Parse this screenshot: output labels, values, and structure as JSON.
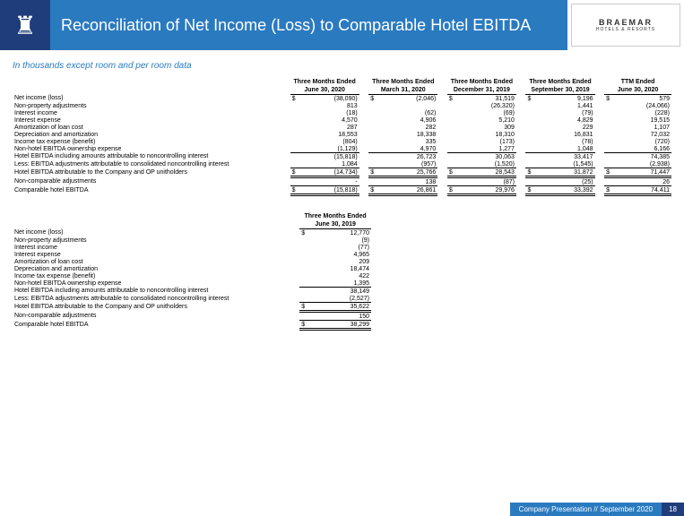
{
  "header": {
    "title": "Reconciliation of Net Income (Loss) to Comparable Hotel EBITDA",
    "brand": "BRAEMAR",
    "brand_sub": "HOTELS & RESORTS"
  },
  "subtitle": "In thousands except room and per room data",
  "periods": [
    {
      "l1": "Three Months Ended",
      "l2": "June 30, 2020"
    },
    {
      "l1": "Three Months Ended",
      "l2": "March 31, 2020"
    },
    {
      "l1": "Three Months Ended",
      "l2": "December 31, 2019"
    },
    {
      "l1": "Three Months Ended",
      "l2": "September 30, 2019"
    },
    {
      "l1": "TTM Ended",
      "l2": "June 30, 2020"
    }
  ],
  "rows": [
    {
      "label": "Net income (loss)",
      "cur": "$",
      "v": [
        "(38,090)",
        "(2,046)",
        "31,519",
        "9,196",
        "579"
      ]
    },
    {
      "label": "Non-property adjustments",
      "v": [
        "813",
        "",
        "(26,320)",
        "1,441",
        "(24,066)"
      ]
    },
    {
      "label": "Interest income",
      "v": [
        "(18)",
        "(62)",
        "(69)",
        "(79)",
        "(228)"
      ]
    },
    {
      "label": "Interest expense",
      "v": [
        "4,570",
        "4,906",
        "5,210",
        "4,829",
        "19,515"
      ]
    },
    {
      "label": "Amortization of loan cost",
      "v": [
        "287",
        "282",
        "309",
        "229",
        "1,107"
      ]
    },
    {
      "label": "Depreciation and amortization",
      "v": [
        "18,553",
        "18,338",
        "18,310",
        "16,831",
        "72,032"
      ]
    },
    {
      "label": "Income tax expense (benefit)",
      "v": [
        "(804)",
        "335",
        "(173)",
        "(78)",
        "(720)"
      ]
    },
    {
      "label": "Non-hotel EBITDA ownership expense",
      "v": [
        "(1,129)",
        "4,970",
        "1,277",
        "1,048",
        "6,166"
      ]
    },
    {
      "label": "Hotel EBITDA including amounts attributable to noncontrolling interest",
      "cls": "line",
      "v": [
        "(15,818)",
        "26,723",
        "30,063",
        "33,417",
        "74,385"
      ]
    },
    {
      "label": "Less: EBITDA adjustments attributable to consolidated noncontrolling interest",
      "v": [
        "1,084",
        "(957)",
        "(1,520)",
        "(1,545)",
        "(2,938)"
      ]
    },
    {
      "label": "Hotel EBITDA attributable to the Company and OP unitholders",
      "cls": "dbl",
      "cur": "$",
      "v": [
        "(14,734)",
        "25,766",
        "28,543",
        "31,872",
        "71,447"
      ]
    },
    {
      "label": "Non-comparable adjustments",
      "v": [
        "-",
        "138",
        "(87)",
        "(25)",
        "26"
      ]
    },
    {
      "label": "Comparable hotel EBITDA",
      "cls": "dbl",
      "cur": "$",
      "v": [
        "(15,818)",
        "26,861",
        "29,976",
        "33,392",
        "74,411"
      ]
    }
  ],
  "period2": {
    "l1": "Three Months Ended",
    "l2": "June 30, 2019"
  },
  "rows2": [
    {
      "label": "Net income (loss)",
      "cur": "$",
      "v": "12,770"
    },
    {
      "label": "Non-property adjustments",
      "v": "(9)"
    },
    {
      "label": "Interest income",
      "v": "(77)"
    },
    {
      "label": "Interest expense",
      "v": "4,965"
    },
    {
      "label": "Amortization of loan cost",
      "v": "209"
    },
    {
      "label": "Depreciation and amortization",
      "v": "18,474"
    },
    {
      "label": "Income tax expense (benefit)",
      "v": "422"
    },
    {
      "label": "Non-hotel EBITDA ownership expense",
      "v": "1,395"
    },
    {
      "label": "Hotel EBITDA including amounts attributable to noncontrolling interest",
      "cls": "line",
      "v": "38,149"
    },
    {
      "label": "Less: EBITDA adjustments attributable to consolidated noncontrolling interest",
      "v": "(2,527)"
    },
    {
      "label": "Hotel EBITDA attributable to the Company and OP unitholders",
      "cls": "dbl",
      "cur": "$",
      "v": "35,622"
    },
    {
      "label": "Non-comparable adjustments",
      "v": "150"
    },
    {
      "label": "Comparable hotel EBITDA",
      "cls": "dbl",
      "cur": "$",
      "v": "38,299"
    }
  ],
  "footer": {
    "text": "Company Presentation // September 2020",
    "page": "18"
  }
}
